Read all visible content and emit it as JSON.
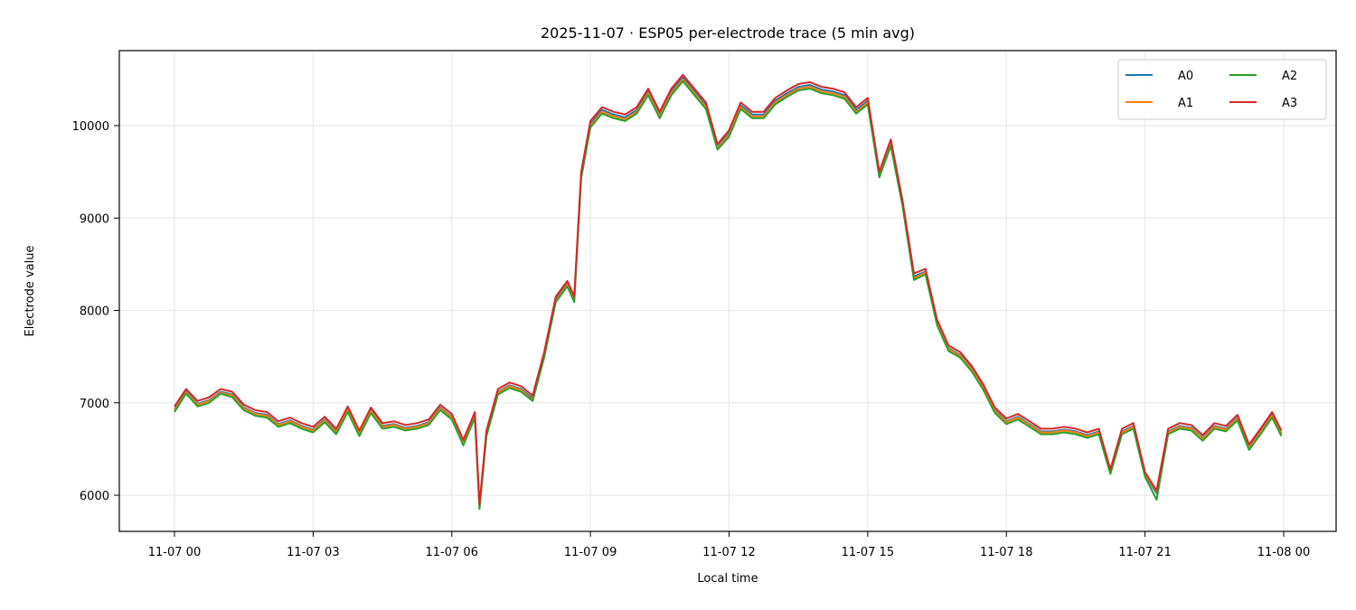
{
  "chart_data": {
    "type": "line",
    "title": "2025-11-07 · ESP05 per-electrode trace (5 min avg)",
    "xlabel": "Local time",
    "ylabel": "Electrode value",
    "x_tick_labels": [
      "11-07 00",
      "11-07 03",
      "11-07 06",
      "11-07 09",
      "11-07 12",
      "11-07 15",
      "11-07 18",
      "11-07 21",
      "11-08 00"
    ],
    "x_tick_hours": [
      0,
      3,
      6,
      9,
      12,
      15,
      18,
      21,
      24
    ],
    "y_ticks": [
      6000,
      7000,
      8000,
      9000,
      10000
    ],
    "xlim_hours": [
      -1.2,
      25.1
    ],
    "ylim": [
      5600,
      10820
    ],
    "grid": true,
    "legend": {
      "position": "upper right",
      "columns": 2,
      "entries": [
        "A0",
        "A1",
        "A2",
        "A3"
      ]
    },
    "colors": {
      "A0": "#1f77b4",
      "A1": "#ff7f0e",
      "A2": "#2ca02c",
      "A3": "#d62728"
    },
    "x_hours": [
      0,
      0.25,
      0.5,
      0.75,
      1.0,
      1.25,
      1.5,
      1.75,
      2.0,
      2.25,
      2.5,
      2.75,
      3.0,
      3.25,
      3.5,
      3.75,
      4.0,
      4.25,
      4.5,
      4.75,
      5.0,
      5.25,
      5.5,
      5.75,
      6.0,
      6.25,
      6.5,
      6.6,
      6.75,
      7.0,
      7.25,
      7.5,
      7.75,
      8.0,
      8.25,
      8.5,
      8.65,
      8.8,
      9.0,
      9.25,
      9.5,
      9.75,
      10.0,
      10.25,
      10.5,
      10.75,
      11.0,
      11.25,
      11.5,
      11.75,
      12.0,
      12.25,
      12.5,
      12.75,
      13.0,
      13.25,
      13.5,
      13.75,
      14.0,
      14.25,
      14.5,
      14.75,
      15.0,
      15.25,
      15.5,
      15.75,
      16.0,
      16.25,
      16.5,
      16.75,
      17.0,
      17.25,
      17.5,
      17.75,
      18.0,
      18.25,
      18.5,
      18.75,
      19.0,
      19.25,
      19.5,
      19.75,
      20.0,
      20.25,
      20.5,
      20.75,
      21.0,
      21.25,
      21.5,
      21.75,
      22.0,
      22.25,
      22.5,
      22.75,
      23.0,
      23.25,
      23.5,
      23.75,
      23.95
    ],
    "series": [
      {
        "name": "A3",
        "values": [
          6960,
          7150,
          7020,
          7060,
          7150,
          7120,
          6980,
          6920,
          6900,
          6800,
          6840,
          6780,
          6740,
          6850,
          6720,
          6960,
          6700,
          6950,
          6780,
          6800,
          6760,
          6780,
          6820,
          6980,
          6880,
          6600,
          6900,
          5900,
          6700,
          7150,
          7220,
          7180,
          7080,
          7550,
          8150,
          8320,
          8150,
          9500,
          10050,
          10200,
          10150,
          10120,
          10200,
          10400,
          10150,
          10400,
          10550,
          10400,
          10250,
          9800,
          9950,
          10250,
          10150,
          10150,
          10300,
          10380,
          10450,
          10470,
          10420,
          10400,
          10360,
          10200,
          10300,
          9500,
          9850,
          9200,
          8400,
          8450,
          7900,
          7620,
          7550,
          7400,
          7200,
          6950,
          6830,
          6880,
          6800,
          6720,
          6720,
          6740,
          6720,
          6680,
          6720,
          6280,
          6720,
          6780,
          6250,
          6050,
          6720,
          6780,
          6760,
          6650,
          6780,
          6750,
          6870,
          6550,
          6720,
          6900,
          6700
        ]
      },
      {
        "name": "A0",
        "values": [
          6930,
          7120,
          6990,
          7030,
          7120,
          7090,
          6950,
          6890,
          6870,
          6770,
          6810,
          6750,
          6710,
          6820,
          6690,
          6930,
          6670,
          6920,
          6750,
          6770,
          6730,
          6750,
          6790,
          6950,
          6850,
          6570,
          6870,
          5870,
          6670,
          7120,
          7190,
          7150,
          7050,
          7520,
          8120,
          8290,
          8120,
          9470,
          10020,
          10170,
          10120,
          10090,
          10170,
          10370,
          10120,
          10370,
          10520,
          10370,
          10220,
          9770,
          9920,
          10220,
          10120,
          10120,
          10270,
          10350,
          10420,
          10440,
          10390,
          10370,
          10330,
          10170,
          10270,
          9470,
          9820,
          9170,
          8370,
          8420,
          7870,
          7590,
          7520,
          7370,
          7170,
          6920,
          6800,
          6850,
          6770,
          6690,
          6690,
          6710,
          6690,
          6650,
          6690,
          6250,
          6690,
          6750,
          6220,
          6020,
          6690,
          6750,
          6730,
          6620,
          6750,
          6720,
          6840,
          6520,
          6690,
          6870,
          6670
        ]
      },
      {
        "name": "A1",
        "values": [
          6920,
          7110,
          6980,
          7020,
          7110,
          7080,
          6940,
          6880,
          6860,
          6760,
          6800,
          6740,
          6700,
          6810,
          6680,
          6920,
          6660,
          6910,
          6740,
          6760,
          6720,
          6740,
          6780,
          6940,
          6840,
          6560,
          6860,
          5880,
          6660,
          7110,
          7180,
          7140,
          7030,
          7510,
          8100,
          8280,
          8100,
          9450,
          10000,
          10150,
          10100,
          10070,
          10150,
          10350,
          10100,
          10350,
          10500,
          10350,
          10200,
          9760,
          9900,
          10200,
          10100,
          10100,
          10250,
          10330,
          10400,
          10420,
          10370,
          10350,
          10310,
          10150,
          10250,
          9460,
          9800,
          9160,
          8350,
          8410,
          7860,
          7580,
          7510,
          7360,
          7160,
          6910,
          6790,
          6840,
          6760,
          6680,
          6680,
          6700,
          6680,
          6640,
          6680,
          6260,
          6680,
          6740,
          6230,
          6040,
          6680,
          6740,
          6720,
          6610,
          6740,
          6710,
          6830,
          6510,
          6680,
          6860,
          6660
        ]
      },
      {
        "name": "A2",
        "values": [
          6900,
          7100,
          6960,
          7000,
          7100,
          7060,
          6920,
          6860,
          6840,
          6740,
          6780,
          6720,
          6680,
          6790,
          6660,
          6900,
          6640,
          6890,
          6720,
          6740,
          6700,
          6720,
          6760,
          6920,
          6820,
          6540,
          6840,
          5850,
          6640,
          7090,
          7160,
          7120,
          7020,
          7490,
          8090,
          8260,
          8090,
          9430,
          9980,
          10130,
          10080,
          10050,
          10130,
          10330,
          10080,
          10330,
          10480,
          10330,
          10180,
          9740,
          9880,
          10180,
          10080,
          10080,
          10230,
          10310,
          10380,
          10400,
          10350,
          10330,
          10290,
          10130,
          10230,
          9440,
          9780,
          9140,
          8330,
          8390,
          7840,
          7560,
          7490,
          7340,
          7140,
          6890,
          6770,
          6820,
          6740,
          6660,
          6660,
          6680,
          6660,
          6620,
          6660,
          6230,
          6660,
          6720,
          6200,
          5950,
          6660,
          6720,
          6700,
          6590,
          6720,
          6690,
          6810,
          6490,
          6660,
          6840,
          6640
        ]
      }
    ]
  }
}
